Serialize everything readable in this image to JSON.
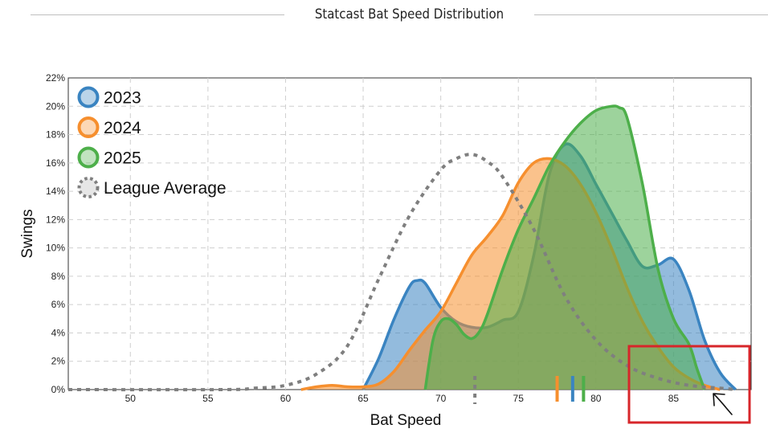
{
  "chart_data": {
    "type": "area",
    "title": "Statcast Bat Speed Distribution",
    "xlabel": "Bat Speed",
    "ylabel": "Swings",
    "xlim": [
      46,
      90
    ],
    "ylim": [
      0,
      22
    ],
    "x_ticks": [
      "50",
      "55",
      "60",
      "65",
      "70",
      "75",
      "80",
      "85"
    ],
    "y_ticks": [
      "0%",
      "2%",
      "4%",
      "6%",
      "8%",
      "10%",
      "12%",
      "14%",
      "16%",
      "18%",
      "20%",
      "22%"
    ],
    "grid": true,
    "legend_position": "top-left",
    "series": [
      {
        "name": "2023",
        "color": "#3a84c1",
        "style": "filled",
        "x": [
          65,
          66,
          67,
          68,
          68.5,
          69,
          70,
          71,
          72,
          73,
          74,
          75,
          76,
          77,
          78,
          79,
          80,
          81,
          82,
          83,
          84,
          85,
          86,
          87,
          88,
          89
        ],
        "y": [
          0,
          2.2,
          5,
          7.3,
          7.7,
          7.5,
          5.8,
          4.8,
          4.4,
          4.4,
          4.9,
          5.5,
          9.5,
          15.2,
          17.3,
          16.5,
          14.5,
          12.5,
          10.5,
          8.7,
          8.8,
          9.2,
          7,
          3.5,
          1.2,
          0
        ]
      },
      {
        "name": "2024",
        "color": "#f68f2e",
        "style": "filled",
        "x": [
          61,
          62,
          63,
          64,
          65,
          66,
          67,
          68,
          69,
          70,
          71,
          72,
          73,
          74,
          75,
          76,
          77,
          78,
          79,
          80,
          81,
          82,
          83,
          84,
          85,
          86,
          87,
          88
        ],
        "y": [
          0,
          0.2,
          0.3,
          0.2,
          0.2,
          0.4,
          1.3,
          2.8,
          4.2,
          5.5,
          7.5,
          9.5,
          10.8,
          12.3,
          14.6,
          16,
          16.3,
          15.8,
          14.5,
          12.5,
          10,
          7.2,
          4.8,
          3,
          1.6,
          0.8,
          0.3,
          0
        ]
      },
      {
        "name": "2025",
        "color": "#4daf4a",
        "style": "filled",
        "x": [
          69,
          69.5,
          70,
          70.5,
          71,
          71.5,
          72,
          72.5,
          73,
          74,
          75,
          76,
          77,
          78,
          79,
          80,
          81,
          81.5,
          82,
          83,
          84,
          85,
          86,
          86.5,
          87
        ],
        "y": [
          0,
          3.5,
          4.8,
          5,
          4.6,
          3.9,
          3.6,
          4.1,
          5.3,
          8.5,
          11.3,
          13.5,
          15.8,
          17.5,
          18.8,
          19.7,
          20,
          19.9,
          19.2,
          14.5,
          8.5,
          5,
          3.2,
          1.5,
          0
        ]
      },
      {
        "name": "League Average",
        "color": "#7f7f7f",
        "style": "dotted",
        "x": [
          46,
          56,
          58,
          60,
          62,
          64,
          66,
          68,
          70,
          71,
          72,
          73,
          74,
          76,
          78,
          80,
          82,
          84,
          86,
          88,
          89
        ],
        "y": [
          0,
          0,
          0.1,
          0.3,
          1.1,
          3.1,
          7.8,
          12.3,
          15.5,
          16.3,
          16.6,
          16.1,
          15,
          11.3,
          6.6,
          3.5,
          1.7,
          0.8,
          0.3,
          0.1,
          0
        ]
      }
    ],
    "markers": [
      {
        "series": "League Average",
        "x": 72.2,
        "color": "#7f7f7f",
        "dashed": true
      },
      {
        "series": "2024",
        "x": 77.5,
        "color": "#f68f2e",
        "dashed": false
      },
      {
        "series": "2023",
        "x": 78.5,
        "color": "#3a84c1",
        "dashed": false
      },
      {
        "series": "2025",
        "x": 79.2,
        "color": "#4daf4a",
        "dashed": false
      }
    ]
  },
  "annotation": {
    "box_color": "#d7262a",
    "arrow_color": "#111111"
  }
}
